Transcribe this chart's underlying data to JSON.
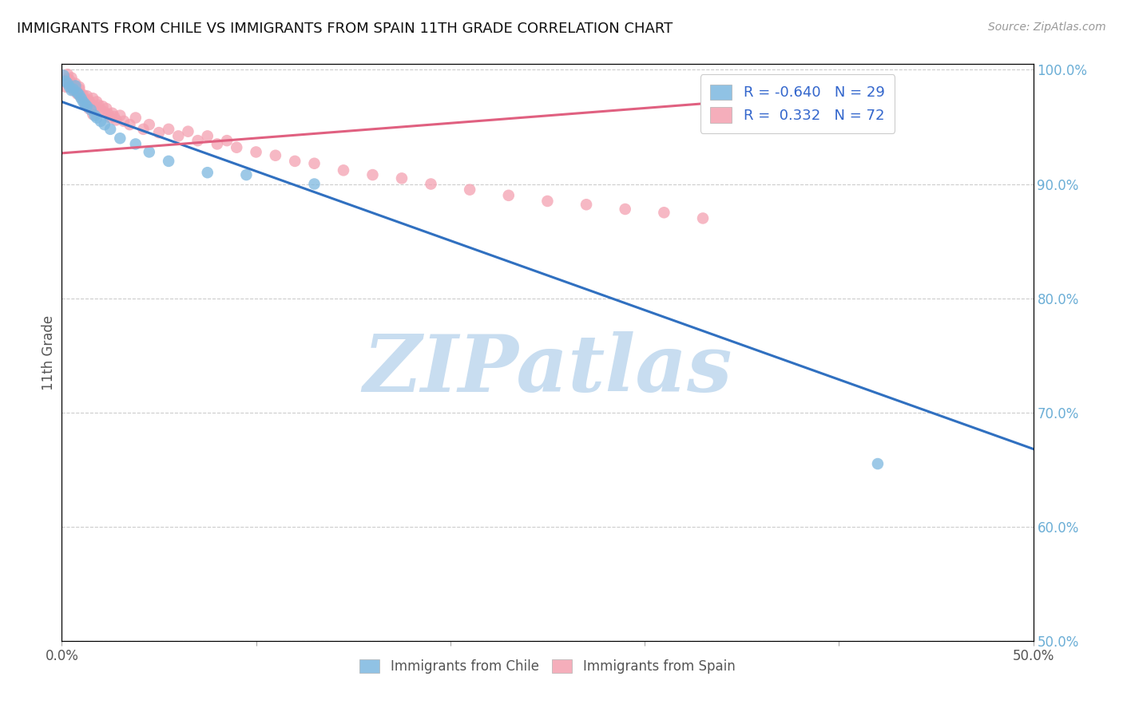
{
  "title": "IMMIGRANTS FROM CHILE VS IMMIGRANTS FROM SPAIN 11TH GRADE CORRELATION CHART",
  "source": "Source: ZipAtlas.com",
  "ylabel": "11th Grade",
  "x_min": 0.0,
  "x_max": 0.5,
  "y_min": 0.5,
  "y_max": 1.005,
  "y_ticks_right": [
    0.5,
    0.6,
    0.7,
    0.8,
    0.9,
    1.0
  ],
  "y_tick_labels_right": [
    "50.0%",
    "60.0%",
    "70.0%",
    "80.0%",
    "90.0%",
    "100.0%"
  ],
  "legend1_R": "-0.640",
  "legend1_N": "29",
  "legend2_R": "0.332",
  "legend2_N": "72",
  "legend1_label": "Immigrants from Chile",
  "legend2_label": "Immigrants from Spain",
  "chile_color": "#7db8e0",
  "spain_color": "#f4a0b0",
  "chile_line_color": "#3070c0",
  "spain_line_color": "#e06080",
  "watermark": "ZIPatlas",
  "watermark_color": "#c8ddf0",
  "background_color": "#ffffff",
  "grid_color": "#cccccc",
  "chile_line_x0": 0.0,
  "chile_line_y0": 0.972,
  "chile_line_x1": 0.5,
  "chile_line_y1": 0.668,
  "spain_line_x0": 0.0,
  "spain_line_y0": 0.927,
  "spain_line_x1": 0.35,
  "spain_line_y1": 0.973,
  "chile_x": [
    0.001,
    0.002,
    0.003,
    0.004,
    0.005,
    0.006,
    0.007,
    0.008,
    0.009,
    0.01,
    0.011,
    0.012,
    0.013,
    0.015,
    0.017,
    0.018,
    0.02,
    0.022,
    0.025,
    0.03,
    0.038,
    0.045,
    0.055,
    0.075,
    0.095,
    0.13,
    0.42
  ],
  "chile_y": [
    0.995,
    0.99,
    0.988,
    0.985,
    0.982,
    0.983,
    0.986,
    0.98,
    0.978,
    0.975,
    0.972,
    0.97,
    0.968,
    0.965,
    0.96,
    0.958,
    0.955,
    0.952,
    0.948,
    0.94,
    0.935,
    0.928,
    0.92,
    0.91,
    0.908,
    0.9,
    0.655
  ],
  "spain_x": [
    0.001,
    0.002,
    0.003,
    0.004,
    0.005,
    0.006,
    0.007,
    0.008,
    0.009,
    0.01,
    0.011,
    0.012,
    0.013,
    0.014,
    0.015,
    0.016,
    0.017,
    0.018,
    0.019,
    0.02,
    0.021,
    0.022,
    0.023,
    0.024,
    0.025,
    0.026,
    0.027,
    0.028,
    0.03,
    0.032,
    0.035,
    0.038,
    0.042,
    0.045,
    0.05,
    0.055,
    0.06,
    0.065,
    0.07,
    0.075,
    0.08,
    0.085,
    0.09,
    0.1,
    0.11,
    0.12,
    0.13,
    0.145,
    0.16,
    0.175,
    0.19,
    0.21,
    0.23,
    0.25,
    0.27,
    0.29,
    0.31,
    0.33,
    0.005,
    0.007,
    0.009,
    0.011,
    0.013,
    0.003,
    0.004,
    0.006,
    0.008,
    0.01,
    0.012,
    0.014,
    0.016
  ],
  "spain_y": [
    0.99,
    0.985,
    0.992,
    0.988,
    0.987,
    0.982,
    0.984,
    0.979,
    0.985,
    0.978,
    0.975,
    0.972,
    0.977,
    0.973,
    0.97,
    0.975,
    0.968,
    0.972,
    0.969,
    0.965,
    0.968,
    0.963,
    0.966,
    0.961,
    0.958,
    0.962,
    0.959,
    0.956,
    0.96,
    0.955,
    0.952,
    0.958,
    0.948,
    0.952,
    0.945,
    0.948,
    0.942,
    0.946,
    0.938,
    0.942,
    0.935,
    0.938,
    0.932,
    0.928,
    0.925,
    0.92,
    0.918,
    0.912,
    0.908,
    0.905,
    0.9,
    0.895,
    0.89,
    0.885,
    0.882,
    0.878,
    0.875,
    0.87,
    0.993,
    0.988,
    0.983,
    0.978,
    0.973,
    0.996,
    0.991,
    0.986,
    0.981,
    0.976,
    0.971,
    0.966,
    0.961
  ]
}
